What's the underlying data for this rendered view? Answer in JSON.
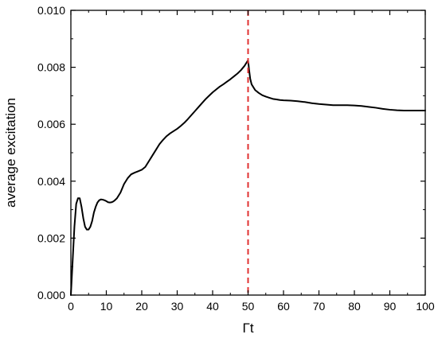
{
  "chart_data": {
    "type": "line",
    "title": "",
    "xlabel": "Γt",
    "ylabel": "average excitation",
    "xlim": [
      0,
      100
    ],
    "ylim": [
      0,
      0.01
    ],
    "x_ticks": [
      "0",
      "10",
      "20",
      "30",
      "40",
      "50",
      "60",
      "70",
      "80",
      "90",
      "100"
    ],
    "y_ticks": [
      "0.000",
      "0.002",
      "0.004",
      "0.006",
      "0.008",
      "0.010"
    ],
    "grid": false,
    "legend": "none",
    "series": [
      {
        "color": "#000000",
        "x": [
          0,
          0.5,
          1,
          1.5,
          2,
          2.5,
          3,
          3.5,
          4,
          4.5,
          5,
          5.5,
          6,
          6.5,
          7,
          7.5,
          8,
          8.5,
          9,
          9.5,
          10,
          10.5,
          11,
          11.5,
          12,
          12.5,
          13,
          14,
          15,
          16,
          17,
          18,
          19,
          20,
          21,
          22,
          23,
          24,
          25,
          26,
          27,
          28,
          29,
          30,
          31,
          32,
          33,
          34,
          35,
          36,
          37,
          38,
          39,
          40,
          41,
          42,
          43,
          44,
          45,
          46,
          47,
          48,
          49,
          49.5,
          50,
          50.3,
          50.6,
          51,
          51.5,
          52,
          53,
          54,
          55,
          56,
          57,
          58,
          59,
          60,
          62,
          64,
          66,
          68,
          70,
          72,
          74,
          76,
          78,
          80,
          82,
          84,
          86,
          88,
          90,
          92,
          94,
          96,
          98,
          100
        ],
        "y": [
          0.0,
          0.0012,
          0.0024,
          0.0032,
          0.0034,
          0.0034,
          0.0031,
          0.0027,
          0.0024,
          0.0023,
          0.0023,
          0.0024,
          0.0026,
          0.0029,
          0.0031,
          0.00325,
          0.00333,
          0.00336,
          0.00335,
          0.00333,
          0.0033,
          0.00326,
          0.00325,
          0.00326,
          0.00329,
          0.00334,
          0.0034,
          0.0036,
          0.0039,
          0.0041,
          0.00424,
          0.0043,
          0.00435,
          0.0044,
          0.0045,
          0.0047,
          0.0049,
          0.0051,
          0.0053,
          0.00545,
          0.00558,
          0.00568,
          0.00576,
          0.00584,
          0.00594,
          0.00605,
          0.00618,
          0.00632,
          0.00646,
          0.0066,
          0.00674,
          0.00688,
          0.007,
          0.00712,
          0.00722,
          0.00732,
          0.0074,
          0.00749,
          0.00758,
          0.00768,
          0.00778,
          0.0079,
          0.00805,
          0.00815,
          0.00825,
          0.0079,
          0.0076,
          0.0074,
          0.0073,
          0.0072,
          0.0071,
          0.00702,
          0.00697,
          0.00693,
          0.00689,
          0.00687,
          0.00685,
          0.00684,
          0.00683,
          0.00681,
          0.00678,
          0.00674,
          0.00671,
          0.00669,
          0.00667,
          0.00667,
          0.00667,
          0.00666,
          0.00664,
          0.00661,
          0.00658,
          0.00654,
          0.00651,
          0.00649,
          0.00648,
          0.00648,
          0.00648,
          0.00648
        ]
      }
    ],
    "vline": {
      "x": 50,
      "color": "#e03030",
      "style": "dashed"
    }
  }
}
